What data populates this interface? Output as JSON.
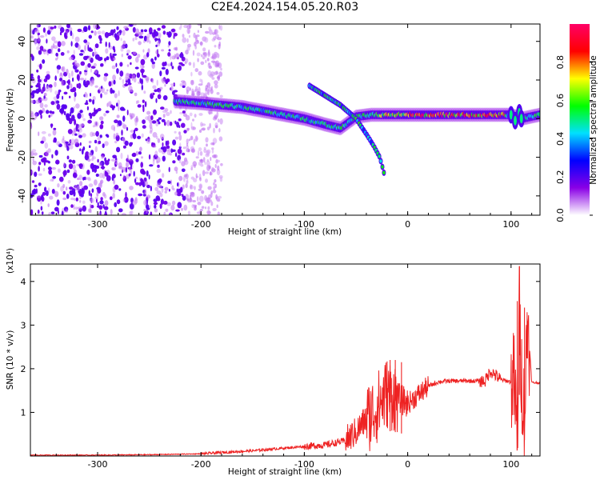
{
  "title": "C2E4.2024.154.05.20.R03",
  "chart_data": [
    {
      "type": "heatmap",
      "xlabel": "Height of straight line (km)",
      "ylabel": "Frequency (Hz)",
      "xlim": [
        -365,
        128
      ],
      "ylim": [
        -50,
        49
      ],
      "xticks": [
        -300,
        -200,
        -100,
        0,
        100
      ],
      "yticks": [
        -40,
        -20,
        0,
        20,
        40
      ],
      "colorbar": {
        "label": "Normalized spectral amplitude",
        "range": [
          0,
          1
        ],
        "ticks": [
          0.0,
          0.2,
          0.4,
          0.6,
          0.8
        ],
        "colors": [
          "#ffffff",
          "#8a00e6",
          "#0000ff",
          "#00e0ff",
          "#00ff00",
          "#ffff00",
          "#ff0000",
          "#ff0066"
        ]
      },
      "features": {
        "noise_region_x": [
          -365,
          -190
        ],
        "main_trace": {
          "x": [
            -225,
            -200,
            -180,
            -160,
            -140,
            -120,
            -100,
            -80,
            -65,
            -50,
            -35,
            -20,
            0,
            40,
            80,
            100,
            110,
            128
          ],
          "y": [
            9,
            8,
            7,
            6,
            4,
            2,
            0,
            -3,
            -5,
            1,
            2,
            2,
            2,
            2,
            2,
            2,
            0,
            2
          ]
        },
        "secondary_trace": {
          "x": [
            -95,
            -80,
            -65,
            -50,
            -40,
            -33,
            -27,
            -22
          ],
          "y": [
            17,
            12,
            7,
            0,
            -8,
            -14,
            -20,
            -30
          ]
        }
      }
    },
    {
      "type": "line",
      "xlabel": "Height of straight line (km)",
      "ylabel": "SNR (10 * v/v)",
      "y_multiplier_label": "(x10⁴)",
      "xlim": [
        -365,
        128
      ],
      "ylim": [
        0,
        4.4
      ],
      "xticks": [
        -300,
        -200,
        -100,
        0,
        100
      ],
      "yticks": [
        1,
        2,
        3,
        4
      ],
      "series": [
        {
          "color": "#ee2222",
          "x": [
            -365,
            -300,
            -250,
            -200,
            -180,
            -150,
            -120,
            -100,
            -80,
            -60,
            -50,
            -40,
            -30,
            -20,
            -10,
            0,
            10,
            20,
            30,
            40,
            60,
            75,
            80,
            90,
            100,
            103,
            106,
            108,
            110,
            113,
            116,
            120,
            128
          ],
          "y": [
            0.02,
            0.02,
            0.03,
            0.05,
            0.08,
            0.12,
            0.18,
            0.22,
            0.25,
            0.35,
            0.55,
            0.85,
            1.1,
            1.45,
            1.35,
            1.2,
            1.4,
            1.6,
            1.7,
            1.72,
            1.72,
            1.72,
            1.95,
            1.75,
            1.7,
            1.7,
            0.35,
            3.5,
            1.9,
            0.9,
            3.2,
            1.68,
            1.68
          ]
        }
      ]
    }
  ]
}
